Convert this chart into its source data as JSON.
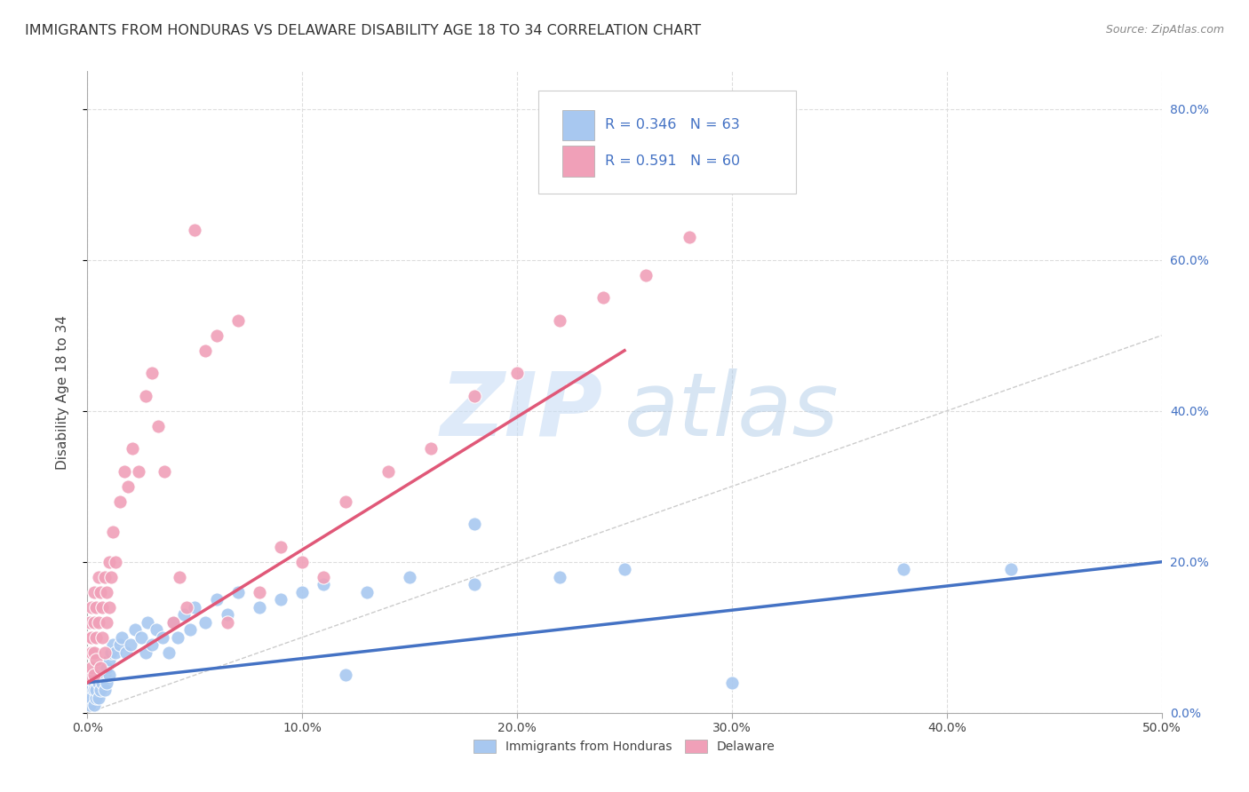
{
  "title": "IMMIGRANTS FROM HONDURAS VS DELAWARE DISABILITY AGE 18 TO 34 CORRELATION CHART",
  "source": "Source: ZipAtlas.com",
  "ylabel": "Disability Age 18 to 34",
  "legend_label1": "Immigrants from Honduras",
  "legend_label2": "Delaware",
  "R1": 0.346,
  "N1": 63,
  "R2": 0.591,
  "N2": 60,
  "color_blue": "#A8C8F0",
  "color_pink": "#F0A0B8",
  "color_blue_text": "#4472C4",
  "color_pink_line": "#E05878",
  "blue_scatter_x": [
    0.001,
    0.001,
    0.001,
    0.002,
    0.002,
    0.002,
    0.003,
    0.003,
    0.003,
    0.004,
    0.004,
    0.004,
    0.005,
    0.005,
    0.005,
    0.006,
    0.006,
    0.007,
    0.007,
    0.008,
    0.008,
    0.009,
    0.009,
    0.01,
    0.01,
    0.011,
    0.012,
    0.013,
    0.015,
    0.016,
    0.018,
    0.02,
    0.022,
    0.025,
    0.027,
    0.028,
    0.03,
    0.032,
    0.035,
    0.038,
    0.04,
    0.042,
    0.045,
    0.048,
    0.05,
    0.055,
    0.06,
    0.065,
    0.07,
    0.08,
    0.09,
    0.1,
    0.11,
    0.13,
    0.15,
    0.18,
    0.22,
    0.25,
    0.3,
    0.38,
    0.43,
    0.18,
    0.12
  ],
  "blue_scatter_y": [
    0.02,
    0.04,
    0.01,
    0.03,
    0.05,
    0.02,
    0.01,
    0.04,
    0.03,
    0.02,
    0.05,
    0.03,
    0.04,
    0.02,
    0.06,
    0.03,
    0.05,
    0.04,
    0.06,
    0.05,
    0.03,
    0.06,
    0.04,
    0.07,
    0.05,
    0.08,
    0.09,
    0.08,
    0.09,
    0.1,
    0.08,
    0.09,
    0.11,
    0.1,
    0.08,
    0.12,
    0.09,
    0.11,
    0.1,
    0.08,
    0.12,
    0.1,
    0.13,
    0.11,
    0.14,
    0.12,
    0.15,
    0.13,
    0.16,
    0.14,
    0.15,
    0.16,
    0.17,
    0.16,
    0.18,
    0.17,
    0.18,
    0.19,
    0.04,
    0.19,
    0.19,
    0.25,
    0.05
  ],
  "pink_scatter_x": [
    0.001,
    0.001,
    0.001,
    0.001,
    0.002,
    0.002,
    0.002,
    0.002,
    0.003,
    0.003,
    0.003,
    0.003,
    0.004,
    0.004,
    0.004,
    0.005,
    0.005,
    0.006,
    0.006,
    0.007,
    0.007,
    0.008,
    0.008,
    0.009,
    0.009,
    0.01,
    0.01,
    0.011,
    0.012,
    0.013,
    0.015,
    0.017,
    0.019,
    0.021,
    0.024,
    0.027,
    0.03,
    0.033,
    0.036,
    0.04,
    0.043,
    0.046,
    0.05,
    0.055,
    0.06,
    0.065,
    0.07,
    0.08,
    0.09,
    0.1,
    0.11,
    0.12,
    0.14,
    0.16,
    0.18,
    0.2,
    0.22,
    0.24,
    0.26,
    0.28
  ],
  "pink_scatter_y": [
    0.05,
    0.08,
    0.1,
    0.12,
    0.06,
    0.1,
    0.14,
    0.08,
    0.05,
    0.12,
    0.08,
    0.16,
    0.1,
    0.07,
    0.14,
    0.12,
    0.18,
    0.06,
    0.16,
    0.1,
    0.14,
    0.08,
    0.18,
    0.12,
    0.16,
    0.14,
    0.2,
    0.18,
    0.24,
    0.2,
    0.28,
    0.32,
    0.3,
    0.35,
    0.32,
    0.42,
    0.45,
    0.38,
    0.32,
    0.12,
    0.18,
    0.14,
    0.64,
    0.48,
    0.5,
    0.12,
    0.52,
    0.16,
    0.22,
    0.2,
    0.18,
    0.28,
    0.32,
    0.35,
    0.42,
    0.45,
    0.52,
    0.55,
    0.58,
    0.63
  ],
  "xlim": [
    0.0,
    0.5
  ],
  "ylim": [
    0.0,
    0.85
  ],
  "xticks": [
    0.0,
    0.1,
    0.2,
    0.3,
    0.4,
    0.5
  ],
  "yticks": [
    0.0,
    0.2,
    0.4,
    0.6,
    0.8
  ],
  "blue_trend_x": [
    0.0,
    0.5
  ],
  "blue_trend_y": [
    0.04,
    0.2
  ],
  "pink_trend_x": [
    0.0,
    0.25
  ],
  "pink_trend_y": [
    0.04,
    0.48
  ]
}
